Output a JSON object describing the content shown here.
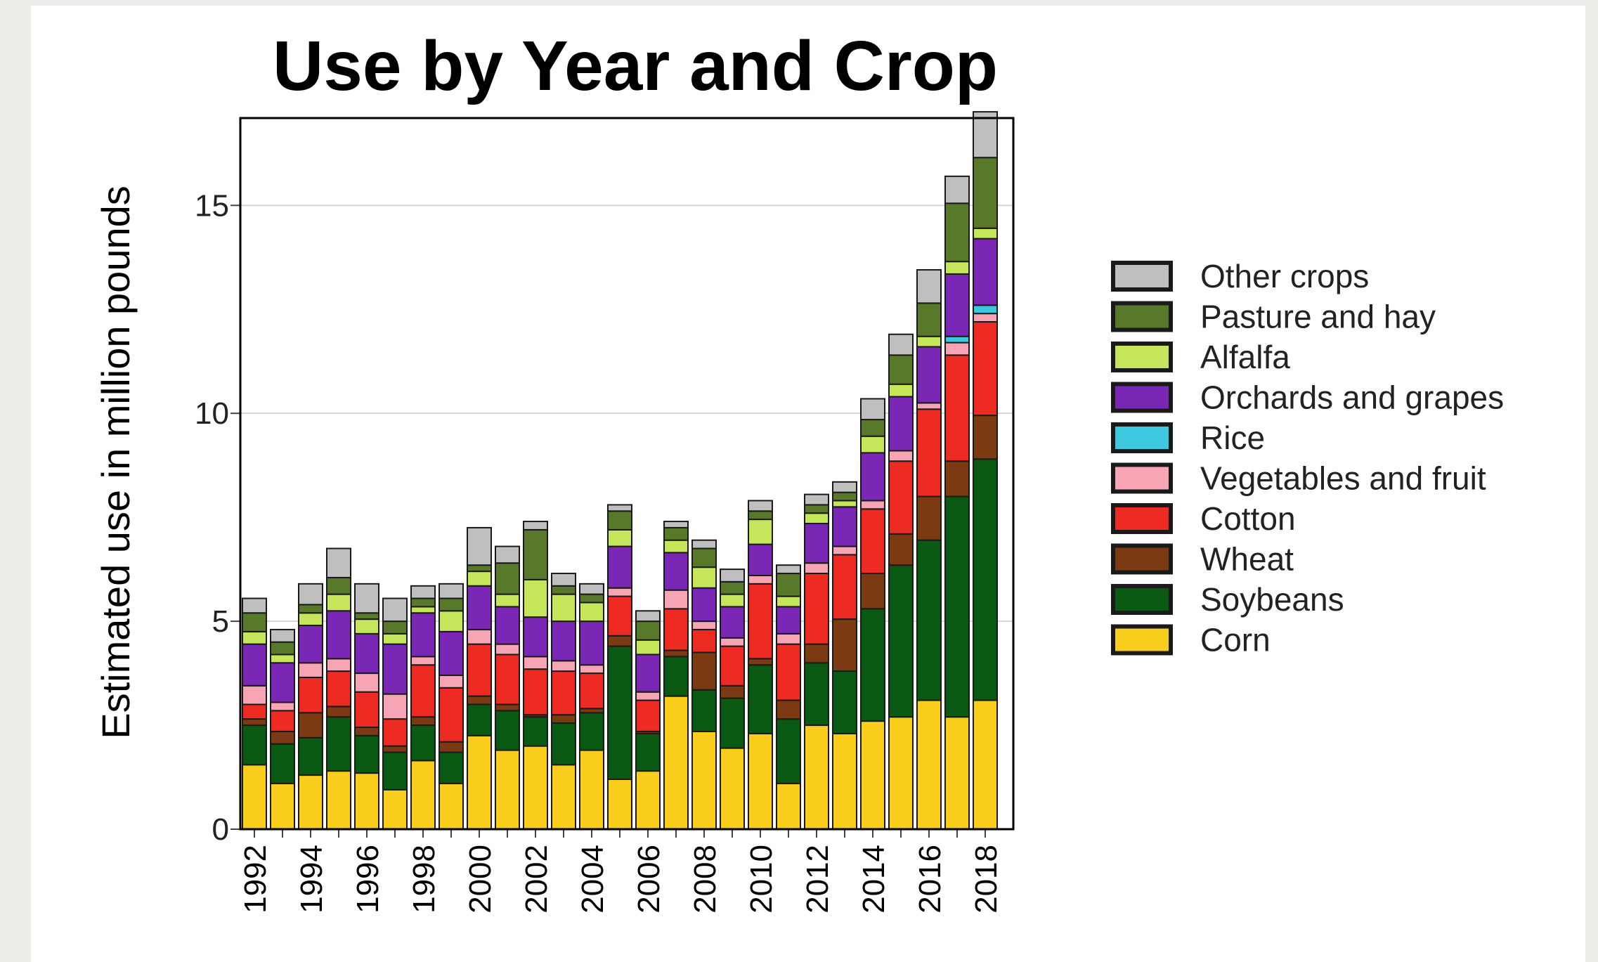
{
  "chart_data": {
    "type": "bar",
    "stacked": true,
    "title": "Use by Year and Crop",
    "xlabel": "",
    "ylabel": "Estimated use in million pounds",
    "ylim": [
      0,
      17.1
    ],
    "yticks": [
      0,
      5,
      10,
      15
    ],
    "grid": "horizontal",
    "legend_position": "right",
    "categories": [
      "1992",
      "1993",
      "1994",
      "1995",
      "1996",
      "1997",
      "1998",
      "1999",
      "2000",
      "2001",
      "2002",
      "2003",
      "2004",
      "2005",
      "2006",
      "2007",
      "2008",
      "2009",
      "2010",
      "2011",
      "2012",
      "2013",
      "2014",
      "2015",
      "2016",
      "2017",
      "2018"
    ],
    "xticklabels": [
      "1992",
      "",
      "1994",
      "",
      "1996",
      "",
      "1998",
      "",
      "2000",
      "",
      "2002",
      "",
      "2004",
      "",
      "2006",
      "",
      "2008",
      "",
      "2010",
      "",
      "2012",
      "",
      "2014",
      "",
      "2016",
      "",
      "2018"
    ],
    "series": [
      {
        "name": "Corn",
        "color": "#f9cd1b",
        "values": [
          1.55,
          1.1,
          1.3,
          1.4,
          1.35,
          0.95,
          1.65,
          1.1,
          2.25,
          1.9,
          2.0,
          1.55,
          1.9,
          1.2,
          1.4,
          3.2,
          2.35,
          1.95,
          2.3,
          1.1,
          2.5,
          2.3,
          2.6,
          2.7,
          3.1,
          2.7,
          3.1
        ]
      },
      {
        "name": "Soybeans",
        "color": "#0b5a14",
        "values": [
          0.95,
          0.95,
          0.9,
          1.3,
          0.9,
          0.9,
          0.85,
          0.75,
          0.75,
          0.95,
          0.7,
          1.0,
          0.9,
          3.2,
          0.9,
          0.95,
          1.0,
          1.2,
          1.65,
          1.55,
          1.5,
          1.5,
          2.7,
          3.65,
          3.85,
          5.3,
          5.8
        ]
      },
      {
        "name": "Wheat",
        "color": "#7c3a12",
        "values": [
          0.15,
          0.3,
          0.6,
          0.25,
          0.2,
          0.15,
          0.2,
          0.25,
          0.2,
          0.15,
          0.05,
          0.2,
          0.1,
          0.25,
          0.05,
          0.15,
          0.9,
          0.3,
          0.15,
          0.45,
          0.45,
          1.25,
          0.85,
          0.75,
          1.05,
          0.85,
          1.05
        ]
      },
      {
        "name": "Cotton",
        "color": "#ee2b23",
        "values": [
          0.35,
          0.5,
          0.85,
          0.85,
          0.85,
          0.65,
          1.25,
          1.3,
          1.25,
          1.2,
          1.1,
          1.05,
          0.85,
          0.95,
          0.75,
          1.0,
          0.55,
          0.95,
          1.8,
          1.35,
          1.7,
          1.55,
          1.55,
          1.75,
          2.1,
          2.55,
          2.25
        ]
      },
      {
        "name": "Vegetables and fruit",
        "color": "#f7a5b5",
        "values": [
          0.45,
          0.2,
          0.35,
          0.3,
          0.45,
          0.6,
          0.2,
          0.3,
          0.35,
          0.25,
          0.3,
          0.25,
          0.2,
          0.2,
          0.2,
          0.45,
          0.2,
          0.2,
          0.2,
          0.25,
          0.25,
          0.2,
          0.2,
          0.25,
          0.15,
          0.3,
          0.2
        ]
      },
      {
        "name": "Rice",
        "color": "#3cc8de",
        "values": [
          0,
          0,
          0,
          0,
          0,
          0,
          0,
          0,
          0,
          0,
          0,
          0,
          0,
          0,
          0,
          0,
          0,
          0,
          0,
          0,
          0,
          0,
          0,
          0,
          0,
          0.15,
          0.2
        ]
      },
      {
        "name": "Orchards and grapes",
        "color": "#7a27b6",
        "values": [
          1.0,
          0.95,
          0.9,
          1.15,
          0.95,
          1.2,
          1.05,
          1.05,
          1.05,
          0.9,
          0.95,
          0.95,
          1.05,
          1.0,
          0.9,
          0.9,
          0.8,
          0.75,
          0.75,
          0.65,
          0.95,
          0.95,
          1.15,
          1.3,
          1.35,
          1.5,
          1.6
        ]
      },
      {
        "name": "Alfalfa",
        "color": "#c5e65a",
        "values": [
          0.3,
          0.2,
          0.3,
          0.4,
          0.35,
          0.25,
          0.15,
          0.5,
          0.35,
          0.3,
          0.9,
          0.65,
          0.45,
          0.4,
          0.35,
          0.3,
          0.5,
          0.3,
          0.6,
          0.25,
          0.25,
          0.15,
          0.4,
          0.3,
          0.25,
          0.3,
          0.25
        ]
      },
      {
        "name": "Pasture and hay",
        "color": "#58792a",
        "values": [
          0.45,
          0.3,
          0.2,
          0.4,
          0.15,
          0.3,
          0.2,
          0.3,
          0.15,
          0.75,
          1.2,
          0.2,
          0.2,
          0.45,
          0.45,
          0.3,
          0.45,
          0.3,
          0.2,
          0.55,
          0.2,
          0.2,
          0.4,
          0.7,
          0.8,
          1.4,
          1.7
        ]
      },
      {
        "name": "Other crops",
        "color": "#bfbfbf",
        "values": [
          0.35,
          0.3,
          0.5,
          0.7,
          0.7,
          0.55,
          0.3,
          0.35,
          0.9,
          0.4,
          0.2,
          0.3,
          0.25,
          0.15,
          0.25,
          0.15,
          0.2,
          0.3,
          0.25,
          0.2,
          0.25,
          0.25,
          0.5,
          0.5,
          0.8,
          0.65,
          1.1
        ]
      }
    ]
  }
}
